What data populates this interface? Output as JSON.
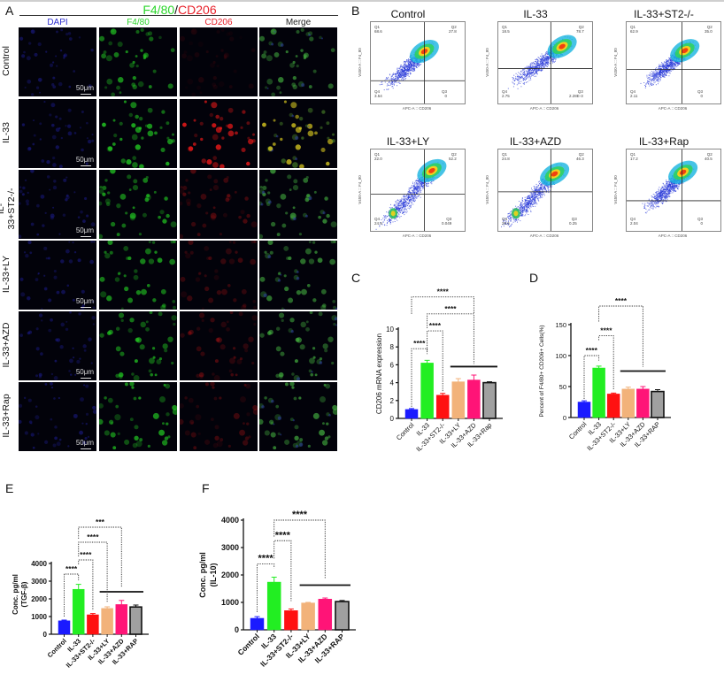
{
  "panels": {
    "A": {
      "letter": "A",
      "title_green": "F4/80",
      "title_sep": "/",
      "title_red": "CD206",
      "columns": [
        {
          "label": "DAPI",
          "color": "#3030d0"
        },
        {
          "label": "F4/80",
          "color": "#2bd62b"
        },
        {
          "label": "CD206",
          "color": "#e8202a"
        },
        {
          "label": "Merge",
          "color": "#222222"
        }
      ],
      "rows": [
        "Control",
        "IL-33",
        "IL-33+ST2-/-",
        "IL-33+LY",
        "IL-33+AZD",
        "IL-33+Rap"
      ],
      "scale_bar": "50μm"
    },
    "B": {
      "letter": "B",
      "x_axis_label": "APC-A :: CD206",
      "y_axis_label": "V450-A :: F4_80",
      "plots": [
        {
          "title": "Control",
          "Q1": "68.6",
          "Q2": "27.8",
          "Q3": "0",
          "Q4": "3.54"
        },
        {
          "title": "IL-33",
          "Q1": "18.5",
          "Q2": "78.7",
          "Q3": "2.28E-3",
          "Q4": "2.75"
        },
        {
          "title": "IL-33+ST2-/-",
          "Q1": "62.9",
          "Q2": "35.0",
          "Q3": "0",
          "Q4": "2.11"
        },
        {
          "title": "IL-33+LY",
          "Q1": "22.0",
          "Q2": "52.2",
          "Q3": "0.049",
          "Q4": "24.9"
        },
        {
          "title": "IL-33+AZD",
          "Q1": "24.8",
          "Q2": "46.3",
          "Q3": "0.25",
          "Q4": "28.6"
        },
        {
          "title": "IL-33+Rap",
          "Q1": "17.2",
          "Q2": "40.5",
          "Q3": "0",
          "Q4": "2.04"
        }
      ]
    },
    "C": {
      "letter": "C"
    },
    "D": {
      "letter": "D"
    },
    "E": {
      "letter": "E"
    },
    "F": {
      "letter": "F"
    }
  },
  "chart_data": [
    {
      "panel": "C",
      "type": "bar",
      "categories": [
        "Control",
        "IL-33",
        "IL-33+ST2-/-",
        "IL-33+LY",
        "IL-33+AZD",
        "IL-33+Rap"
      ],
      "values": [
        1.0,
        6.2,
        2.6,
        4.1,
        4.3,
        4.0
      ],
      "errors": [
        0.1,
        0.3,
        0.2,
        0.35,
        0.55,
        0.1
      ],
      "colors": [
        "#1a1aff",
        "#22ee22",
        "#ff1111",
        "#f2b27a",
        "#ff1477",
        "#a0a0a0"
      ],
      "title": "",
      "xlabel": "",
      "ylabel": "CD206 mRNA expression",
      "ylim": [
        0,
        10
      ],
      "yticks": [
        0,
        2,
        4,
        6,
        8,
        10
      ],
      "significance": [
        {
          "from": "Control",
          "to": "IL-33",
          "label": "****"
        },
        {
          "from": "IL-33",
          "to": "IL-33+ST2-/-",
          "label": "****"
        },
        {
          "from": "IL-33",
          "to": "IL-33+LY..IL-33+Rap",
          "label": "****"
        },
        {
          "from": "Control",
          "to": "IL-33+LY..IL-33+Rap",
          "label": "****"
        }
      ]
    },
    {
      "panel": "D",
      "type": "bar",
      "categories": [
        "Control",
        "IL-33",
        "IL-33+ST2-/-",
        "IL-33+LY",
        "IL-33+AZD",
        "IL-33+RAP"
      ],
      "values": [
        25,
        80,
        38,
        46,
        46,
        42
      ],
      "errors": [
        2,
        3,
        1.5,
        3,
        4,
        3
      ],
      "colors": [
        "#1a1aff",
        "#22ee22",
        "#ff1111",
        "#f2b27a",
        "#ff1477",
        "#a0a0a0"
      ],
      "title": "",
      "xlabel": "",
      "ylabel": "Percent of F4/80+ CD206+ Cells(%)",
      "ylim": [
        0,
        150
      ],
      "yticks": [
        0,
        50,
        100,
        150
      ],
      "significance": [
        {
          "from": "Control",
          "to": "IL-33",
          "label": "****"
        },
        {
          "from": "IL-33",
          "to": "IL-33+ST2-/-",
          "label": "****"
        },
        {
          "from": "IL-33",
          "to": "IL-33+LY..IL-33+RAP",
          "label": "****"
        }
      ]
    },
    {
      "panel": "E",
      "type": "bar",
      "categories": [
        "Control",
        "IL-33",
        "IL-33+ST2-/-",
        "IL-33+LY",
        "IL-33+AZD",
        "IL-33+RAP"
      ],
      "values": [
        760,
        2540,
        1100,
        1460,
        1680,
        1540
      ],
      "errors": [
        40,
        280,
        70,
        90,
        230,
        110
      ],
      "colors": [
        "#1a1aff",
        "#22ee22",
        "#ff1111",
        "#f2b27a",
        "#ff1477",
        "#a0a0a0"
      ],
      "title": "",
      "xlabel": "",
      "ylabel": "Conc. pg/ml (TGF-β)",
      "ylim": [
        0,
        4500
      ],
      "yticks": [
        0,
        1000,
        2000,
        3000,
        4000
      ],
      "significance": [
        {
          "from": "Control",
          "to": "IL-33",
          "label": "****"
        },
        {
          "from": "IL-33",
          "to": "IL-33+ST2-/-",
          "label": "****"
        },
        {
          "from": "IL-33",
          "to": "IL-33+LY",
          "label": "****"
        },
        {
          "from": "IL-33",
          "to": "IL-33+AZD..IL-33+RAP",
          "label": "***"
        }
      ]
    },
    {
      "panel": "F",
      "type": "bar",
      "categories": [
        "Control",
        "IL-33",
        "IL-33+ST2-/-",
        "IL-33+LY",
        "IL-33+AZD",
        "IL-33+RAP"
      ],
      "values": [
        420,
        1740,
        700,
        980,
        1120,
        1030
      ],
      "errors": [
        60,
        180,
        60,
        20,
        40,
        40
      ],
      "colors": [
        "#1a1aff",
        "#22ee22",
        "#ff1111",
        "#f2b27a",
        "#ff1477",
        "#a0a0a0"
      ],
      "title": "",
      "xlabel": "",
      "ylabel": "Conc. pg/ml (IL-10)",
      "ylim": [
        0,
        4000
      ],
      "yticks": [
        0,
        1000,
        2000,
        3000,
        4000
      ],
      "significance": [
        {
          "from": "Control",
          "to": "IL-33",
          "label": "****"
        },
        {
          "from": "IL-33",
          "to": "IL-33+ST2-/-",
          "label": "****"
        },
        {
          "from": "IL-33",
          "to": "IL-33+LY..IL-33+RAP",
          "label": "****"
        }
      ]
    }
  ]
}
